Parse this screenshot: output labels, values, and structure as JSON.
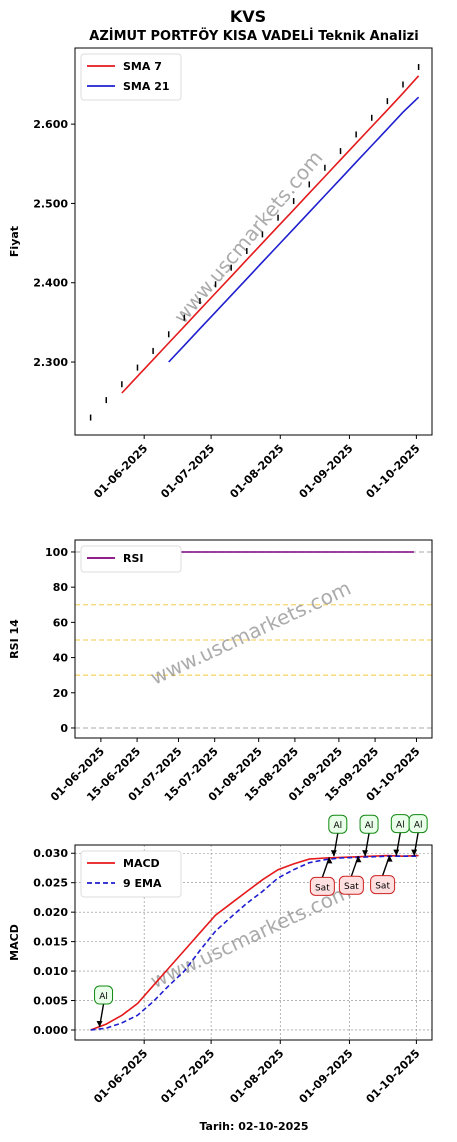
{
  "chart_data": [
    {
      "type": "line",
      "title": "KVS",
      "subtitle": "AZİMUT PORTFÖY KISA VADELİ Teknik Analizi",
      "ylabel": "Fiyat",
      "watermark": "www.uscmarkets.com",
      "legend": "upper left",
      "grid": false,
      "x": [
        "08-05-2025",
        "15-05-2025",
        "22-05-2025",
        "29-05-2025",
        "05-06-2025",
        "12-06-2025",
        "19-06-2025",
        "26-06-2025",
        "03-07-2025",
        "10-07-2025",
        "17-07-2025",
        "24-07-2025",
        "31-07-2025",
        "07-08-2025",
        "14-08-2025",
        "21-08-2025",
        "28-08-2025",
        "04-09-2025",
        "11-09-2025",
        "18-09-2025",
        "25-09-2025",
        "02-10-2025"
      ],
      "series": [
        {
          "color": "#000000",
          "marker": "tick",
          "values": [
            2.23,
            2.252,
            2.272,
            2.293,
            2.314,
            2.335,
            2.356,
            2.377,
            2.398,
            2.419,
            2.44,
            2.461,
            2.482,
            2.503,
            2.524,
            2.545,
            2.566,
            2.587,
            2.608,
            2.629,
            2.65,
            2.672
          ]
        },
        {
          "name": "SMA 7",
          "color": "#e41a1c",
          "values": [
            null,
            null,
            2.261,
            2.282,
            2.303,
            2.324,
            2.345,
            2.366,
            2.387,
            2.408,
            2.429,
            2.45,
            2.471,
            2.492,
            2.513,
            2.534,
            2.555,
            2.576,
            2.597,
            2.618,
            2.639,
            2.661
          ]
        },
        {
          "name": "SMA 21",
          "color": "#1f1fcf",
          "values": [
            null,
            null,
            null,
            null,
            null,
            2.3,
            2.321,
            2.342,
            2.363,
            2.384,
            2.405,
            2.426,
            2.447,
            2.468,
            2.489,
            2.51,
            2.531,
            2.552,
            2.573,
            2.594,
            2.615,
            2.634
          ]
        }
      ],
      "xlim": [
        "01-05-2025",
        "08-10-2025"
      ],
      "xticks": [
        "01-06-2025",
        "01-07-2025",
        "01-08-2025",
        "01-09-2025",
        "01-10-2025"
      ],
      "ylim": [
        2.208,
        2.696
      ],
      "yticks": [
        {
          "value": 2.3,
          "label": "2.300"
        },
        {
          "value": 2.4,
          "label": "2.400"
        },
        {
          "value": 2.5,
          "label": "2.500"
        },
        {
          "value": 2.6,
          "label": "2.600"
        }
      ]
    },
    {
      "type": "line",
      "ylabel": "RSI 14",
      "watermark": "www.uscmarkets.com",
      "legend": "upper left",
      "grid": false,
      "x": [
        "27-05-2025",
        "03-06-2025",
        "10-06-2025",
        "17-06-2025",
        "24-06-2025",
        "01-07-2025",
        "08-07-2025",
        "15-07-2025",
        "22-07-2025",
        "29-07-2025",
        "05-08-2025",
        "12-08-2025",
        "19-08-2025",
        "26-08-2025",
        "02-09-2025",
        "09-09-2025",
        "16-09-2025",
        "23-09-2025",
        "30-09-2025"
      ],
      "series": [
        {
          "name": "RSI",
          "color": "#800080",
          "values": [
            100,
            100,
            100,
            100,
            100,
            100,
            100,
            100,
            100,
            100,
            100,
            100,
            100,
            100,
            100,
            100,
            100,
            100,
            100
          ]
        }
      ],
      "hlines": [
        {
          "value": 0,
          "color": "#bbbbbb"
        },
        {
          "value": 30,
          "color": "#f5d76e"
        },
        {
          "value": 50,
          "color": "#f5d76e"
        },
        {
          "value": 70,
          "color": "#f5d76e"
        },
        {
          "value": 100,
          "color": "#bbbbbb"
        }
      ],
      "xlim": [
        "22-05-2025",
        "07-10-2025"
      ],
      "xticks": [
        "01-06-2025",
        "15-06-2025",
        "01-07-2025",
        "15-07-2025",
        "01-08-2025",
        "15-08-2025",
        "01-09-2025",
        "15-09-2025",
        "01-10-2025"
      ],
      "ylim": [
        -5.7,
        106.8
      ],
      "yticks": [
        0,
        20,
        40,
        60,
        80,
        100
      ]
    },
    {
      "type": "line",
      "ylabel": "MACD",
      "xlabel": "Tarih: 02-10-2025",
      "watermark": "www.uscmarkets.com",
      "legend": "upper left",
      "grid": true,
      "x": [
        "08-05-2025",
        "15-05-2025",
        "22-05-2025",
        "29-05-2025",
        "05-06-2025",
        "12-06-2025",
        "19-06-2025",
        "26-06-2025",
        "03-07-2025",
        "10-07-2025",
        "17-07-2025",
        "24-07-2025",
        "31-07-2025",
        "07-08-2025",
        "14-08-2025",
        "21-08-2025",
        "28-08-2025",
        "04-09-2025",
        "11-09-2025",
        "18-09-2025",
        "25-09-2025",
        "02-10-2025"
      ],
      "series": [
        {
          "name": "MACD",
          "color": "#e41a1c",
          "values": [
            0.0,
            0.001,
            0.0025,
            0.0045,
            0.0075,
            0.0105,
            0.0135,
            0.0165,
            0.0195,
            0.0215,
            0.0235,
            0.0255,
            0.0272,
            0.0282,
            0.029,
            0.0292,
            0.0293,
            0.0294,
            0.0295,
            0.0296,
            0.0295,
            0.0296
          ]
        },
        {
          "name": "9 EMA",
          "color": "#1f1fcf",
          "dash": true,
          "values": [
            0.0,
            0.0003,
            0.0012,
            0.0025,
            0.0048,
            0.0075,
            0.01,
            0.0135,
            0.0168,
            0.0192,
            0.0215,
            0.0235,
            0.0258,
            0.0272,
            0.0284,
            0.0289,
            0.0292,
            0.0293,
            0.0294,
            0.0295,
            0.0295,
            0.0295
          ]
        }
      ],
      "annotations": [
        {
          "text": "Al",
          "x": "12-05-2025",
          "y": 0.0005
        },
        {
          "text": "Al",
          "x": "25-08-2025",
          "y": 0.0295
        },
        {
          "text": "Al",
          "x": "08-09-2025",
          "y": 0.0295
        },
        {
          "text": "Al",
          "x": "22-09-2025",
          "y": 0.0296
        },
        {
          "text": "Al",
          "x": "30-09-2025",
          "y": 0.0296
        },
        {
          "text": "Sat",
          "x": "23-08-2025",
          "y": 0.0293
        },
        {
          "text": "Sat",
          "x": "05-09-2025",
          "y": 0.0295
        },
        {
          "text": "Sat",
          "x": "19-09-2025",
          "y": 0.0296
        }
      ],
      "xlim": [
        "01-05-2025",
        "08-10-2025"
      ],
      "xticks": [
        "01-06-2025",
        "01-07-2025",
        "01-08-2025",
        "01-09-2025",
        "01-10-2025"
      ],
      "ylim": [
        -0.0017,
        0.0314
      ],
      "yticks": [
        {
          "value": 0,
          "label": "0.000"
        },
        {
          "value": 0.005,
          "label": "0.005"
        },
        {
          "value": 0.01,
          "label": "0.010"
        },
        {
          "value": 0.015,
          "label": "0.015"
        },
        {
          "value": 0.02,
          "label": "0.020"
        },
        {
          "value": 0.025,
          "label": "0.025"
        },
        {
          "value": 0.03,
          "label": "0.030"
        }
      ]
    }
  ]
}
